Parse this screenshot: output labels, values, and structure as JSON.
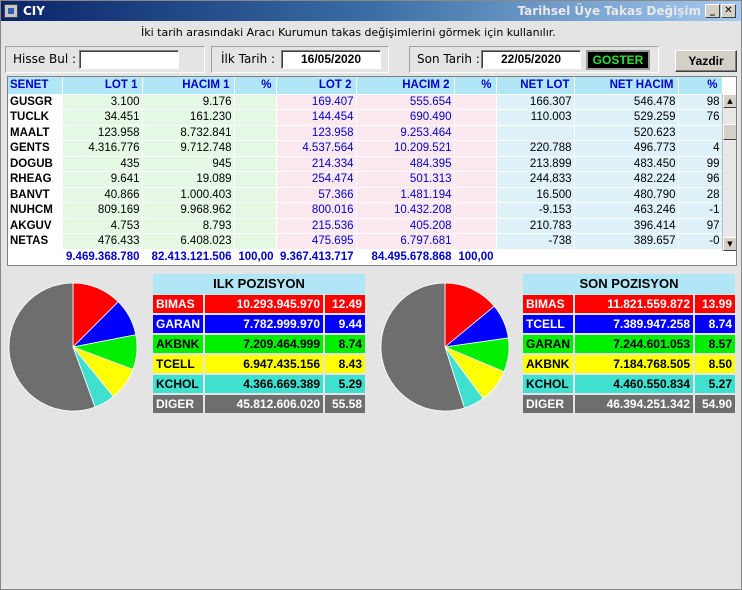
{
  "window": {
    "app_title": "CIY",
    "title": "Tarihsel Üye Takas Değişim"
  },
  "hint": "İki tarih arasındaki Aracı Kurumun takas değişimlerini görmek için kullanılır.",
  "search": {
    "label": "Hisse Bul :",
    "value": ""
  },
  "ilk_tarih": {
    "label": "İlk Tarih :",
    "value": "16/05/2020"
  },
  "son_tarih": {
    "label": "Son Tarih :",
    "value": "22/05/2020"
  },
  "buttons": {
    "goster": "GOSTER",
    "yazdir": "Yazdir"
  },
  "grid": {
    "columns": [
      "SENET",
      "LOT 1",
      "HACIM 1",
      "%",
      "LOT 2",
      "HACIM 2",
      "%",
      "NET LOT",
      "NET HACIM",
      "%"
    ],
    "rows": [
      [
        "GUSGR",
        "3.100",
        "9.176",
        "",
        "169.407",
        "555.654",
        "",
        "166.307",
        "546.478",
        "98"
      ],
      [
        "TUCLK",
        "34.451",
        "161.230",
        "",
        "144.454",
        "690.490",
        "",
        "110.003",
        "529.259",
        "76"
      ],
      [
        "MAALT",
        "123.958",
        "8.732.841",
        "",
        "123.958",
        "9.253.464",
        "",
        "",
        "520.623",
        ""
      ],
      [
        "GENTS",
        "4.316.776",
        "9.712.748",
        "",
        "4.537.564",
        "10.209.521",
        "",
        "220.788",
        "496.773",
        "4"
      ],
      [
        "DOGUB",
        "435",
        "945",
        "",
        "214.334",
        "484.395",
        "",
        "213.899",
        "483.450",
        "99"
      ],
      [
        "RHEAG",
        "9.641",
        "19.089",
        "",
        "254.474",
        "501.313",
        "",
        "244.833",
        "482.224",
        "96"
      ],
      [
        "BANVT",
        "40.866",
        "1.000.403",
        "",
        "57.366",
        "1.481.194",
        "",
        "16.500",
        "480.790",
        "28"
      ],
      [
        "NUHCM",
        "809.169",
        "9.968.962",
        "",
        "800.016",
        "10.432.208",
        "",
        "-9.153",
        "463.246",
        "-1"
      ],
      [
        "AKGUV",
        "4.753",
        "8.793",
        "",
        "215.536",
        "405.208",
        "",
        "210.783",
        "396.414",
        "97"
      ],
      [
        "NETAS",
        "476.433",
        "6.408.023",
        "",
        "475.695",
        "6.797.681",
        "",
        "-738",
        "389.657",
        "-0"
      ]
    ],
    "totals": [
      "",
      "9.469.368.780",
      "82.413.121.506",
      "100,00",
      "9.367.413.717",
      "84.495.678.868",
      "100,00",
      "",
      "",
      ""
    ]
  },
  "ilk_pozisyon": {
    "title": "ILK POZISYON",
    "rows": [
      {
        "name": "BIMAS",
        "value": "10.293.945.970",
        "pct": "12.49",
        "share": 12.49,
        "color": "#ff0000"
      },
      {
        "name": "GARAN",
        "value": "7.782.999.970",
        "pct": "9.44",
        "share": 9.44,
        "color": "#0000ff"
      },
      {
        "name": "AKBNK",
        "value": "7.209.464.999",
        "pct": "8.74",
        "share": 8.74,
        "color": "#00ee00"
      },
      {
        "name": "TCELL",
        "value": "6.947.435.156",
        "pct": "8.43",
        "share": 8.43,
        "color": "#ffff00"
      },
      {
        "name": "KCHOL",
        "value": "4.366.669.389",
        "pct": "5.29",
        "share": 5.29,
        "color": "#40e0d0"
      },
      {
        "name": "DIGER",
        "value": "45.812.606.020",
        "pct": "55.58",
        "share": 55.58,
        "color": "#6e6e6e"
      }
    ]
  },
  "son_pozisyon": {
    "title": "SON POZISYON",
    "rows": [
      {
        "name": "BIMAS",
        "value": "11.821.559.872",
        "pct": "13.99",
        "share": 13.99,
        "color": "#ff0000"
      },
      {
        "name": "TCELL",
        "value": "7.389.947.258",
        "pct": "8.74",
        "share": 8.74,
        "color": "#0000ff"
      },
      {
        "name": "GARAN",
        "value": "7.244.601.053",
        "pct": "8.57",
        "share": 8.57,
        "color": "#00ee00"
      },
      {
        "name": "AKBNK",
        "value": "7.184.768.505",
        "pct": "8.50",
        "share": 8.5,
        "color": "#ffff00"
      },
      {
        "name": "KCHOL",
        "value": "4.460.550.834",
        "pct": "5.27",
        "share": 5.27,
        "color": "#40e0d0"
      },
      {
        "name": "DIGER",
        "value": "46.394.251.342",
        "pct": "54.90",
        "share": 54.9,
        "color": "#6e6e6e"
      }
    ]
  }
}
